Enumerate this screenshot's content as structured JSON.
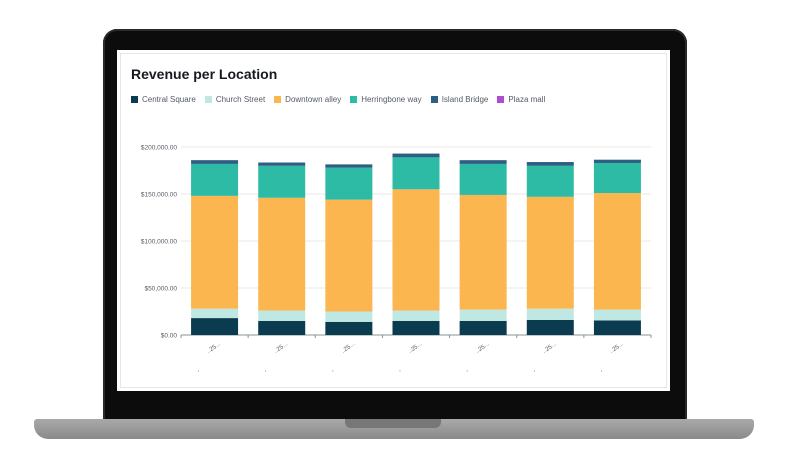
{
  "window": {
    "title": "Revenue per Location"
  },
  "chart_data": {
    "type": "bar",
    "stacked": true,
    "title": "Revenue per Location",
    "xlabel": "",
    "ylabel": "",
    "ylim": [
      0,
      200000
    ],
    "yticks": [
      0,
      50000,
      100000,
      150000,
      200000
    ],
    "ytick_labels": [
      "$0.00",
      "$50,000.00",
      "$100,000.00",
      "$150,000.00",
      "$200,000.00"
    ],
    "categories": [
      "..25...",
      "..25...",
      "..25...",
      "..25...",
      "..25...",
      "..25...",
      "..25..."
    ],
    "grid": true,
    "legend": "top-left",
    "series": [
      {
        "name": "Central Square",
        "color": "#0b3b4f",
        "values": [
          18000,
          15000,
          14000,
          15000,
          15000,
          16000,
          15500
        ]
      },
      {
        "name": "Church Street",
        "color": "#bfe8e3",
        "values": [
          10000,
          11000,
          11000,
          11000,
          12000,
          12000,
          11500
        ]
      },
      {
        "name": "Downtown alley",
        "color": "#fbb650",
        "values": [
          120000,
          120000,
          119000,
          129000,
          122000,
          119000,
          124000
        ]
      },
      {
        "name": "Herringbone way",
        "color": "#2dbba6",
        "values": [
          34000,
          34000,
          34000,
          34000,
          33000,
          33000,
          32000
        ]
      },
      {
        "name": "Island Bridge",
        "color": "#2d5f82",
        "values": [
          4000,
          3500,
          3500,
          4000,
          4000,
          4000,
          3500
        ]
      },
      {
        "name": "Plaza mall",
        "color": "#b04bd4",
        "values": [
          0,
          0,
          0,
          0,
          0,
          0,
          0
        ]
      }
    ]
  }
}
